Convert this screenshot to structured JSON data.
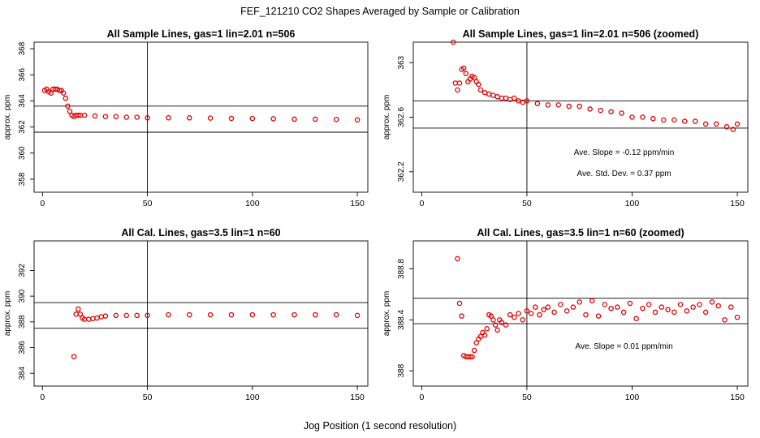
{
  "figure": {
    "title": "FEF_121210  CO2 Shapes Averaged by Sample or Calibration",
    "xlabel": "Jog Position (1 second resolution)",
    "point_color": "#e00000",
    "line_color": "#000000"
  },
  "chart_data": [
    {
      "type": "scatter",
      "title": "All Sample Lines, gas=1 lin=2.01 n=506",
      "xlabel": "",
      "ylabel": "approx. ppm",
      "xlim": [
        -4,
        155
      ],
      "ylim": [
        357,
        368.5
      ],
      "xticks": [
        0,
        50,
        100,
        150
      ],
      "yticks": [
        358,
        360,
        362,
        364,
        366,
        368
      ],
      "vline": 50,
      "hlines": [
        363.6,
        361.6
      ],
      "annotations": [],
      "points": {
        "x": [
          1,
          2,
          3,
          4,
          5,
          6,
          7,
          8,
          9,
          10,
          11,
          12,
          13,
          14,
          15,
          16,
          17,
          18,
          20,
          25,
          30,
          35,
          40,
          45,
          50,
          60,
          70,
          80,
          90,
          100,
          110,
          120,
          130,
          140,
          150
        ],
        "y": [
          364.8,
          364.9,
          364.7,
          364.6,
          364.9,
          364.9,
          364.9,
          364.8,
          364.8,
          364.6,
          364.2,
          363.6,
          363.2,
          362.9,
          362.8,
          362.9,
          362.9,
          362.9,
          362.9,
          362.85,
          362.8,
          362.8,
          362.75,
          362.75,
          362.7,
          362.7,
          362.7,
          362.68,
          362.66,
          362.65,
          362.63,
          362.6,
          362.6,
          362.58,
          362.55
        ]
      }
    },
    {
      "type": "scatter",
      "title": "All Sample Lines, gas=1 lin=2.01 n=506 (zoomed)",
      "xlabel": "",
      "ylabel": "approx. ppm",
      "xlim": [
        -4,
        155
      ],
      "ylim": [
        362.05,
        363.15
      ],
      "xticks": [
        0,
        50,
        100,
        150
      ],
      "yticks": [
        362.2,
        362.6,
        363.0
      ],
      "vline": 50,
      "hlines": [
        362.72,
        362.52
      ],
      "annotations": [
        "Ave. Slope =  -0.12  ppm/min",
        "Ave. Std. Dev. =  0.37  ppm"
      ],
      "points": {
        "x": [
          15,
          16,
          17,
          18,
          19,
          20,
          21,
          22,
          23,
          24,
          25,
          26,
          27,
          28,
          30,
          32,
          34,
          36,
          38,
          40,
          42,
          44,
          46,
          48,
          50,
          55,
          60,
          65,
          70,
          75,
          80,
          85,
          90,
          95,
          100,
          105,
          110,
          115,
          120,
          125,
          130,
          135,
          140,
          145,
          148,
          150
        ],
        "y": [
          363.15,
          362.85,
          362.8,
          362.85,
          362.95,
          362.96,
          362.92,
          362.86,
          362.88,
          362.9,
          362.89,
          362.86,
          362.84,
          362.8,
          362.78,
          362.77,
          362.76,
          362.75,
          362.74,
          362.74,
          362.73,
          362.74,
          362.72,
          362.71,
          362.72,
          362.7,
          362.69,
          362.69,
          362.68,
          362.68,
          362.66,
          362.65,
          362.64,
          362.63,
          362.6,
          362.6,
          362.59,
          362.58,
          362.58,
          362.57,
          362.57,
          362.55,
          362.55,
          362.53,
          362.51,
          362.55
        ]
      }
    },
    {
      "type": "scatter",
      "title": "All Cal. Lines, gas=3.5 lin=1 n=60",
      "xlabel": "",
      "ylabel": "approx. ppm",
      "xlim": [
        -4,
        155
      ],
      "ylim": [
        383,
        394.3
      ],
      "xticks": [
        0,
        50,
        100,
        150
      ],
      "yticks": [
        384,
        386,
        388,
        390,
        392
      ],
      "vline": 50,
      "hlines": [
        389.5,
        387.5
      ],
      "annotations": [],
      "points": {
        "x": [
          15,
          16,
          17,
          18,
          19,
          20,
          22,
          24,
          26,
          28,
          30,
          35,
          40,
          45,
          50,
          60,
          70,
          80,
          90,
          100,
          110,
          120,
          130,
          140,
          150
        ],
        "y": [
          385.3,
          388.6,
          389.0,
          388.6,
          388.3,
          388.2,
          388.2,
          388.25,
          388.3,
          388.4,
          388.45,
          388.5,
          388.5,
          388.5,
          388.5,
          388.55,
          388.55,
          388.55,
          388.55,
          388.55,
          388.55,
          388.55,
          388.55,
          388.55,
          388.5
        ]
      }
    },
    {
      "type": "scatter",
      "title": "All Cal. Lines, gas=3.5 lin=1 n=60 (zoomed)",
      "xlabel": "",
      "ylabel": "approx. ppm",
      "xlim": [
        -4,
        155
      ],
      "ylim": [
        387.88,
        389.02
      ],
      "xticks": [
        0,
        50,
        100,
        150
      ],
      "yticks": [
        388.0,
        388.4,
        388.8
      ],
      "vline": 50,
      "hlines": [
        388.57,
        388.37
      ],
      "annotations": [
        "Ave. Slope =  0.01  ppm/min"
      ],
      "points": {
        "x": [
          17,
          18,
          19,
          20,
          21,
          22,
          23,
          24,
          25,
          26,
          27,
          28,
          29,
          30,
          31,
          32,
          33,
          34,
          35,
          36,
          37,
          38,
          40,
          42,
          44,
          46,
          48,
          50,
          52,
          54,
          56,
          58,
          60,
          63,
          66,
          69,
          72,
          75,
          78,
          81,
          84,
          87,
          90,
          93,
          96,
          99,
          102,
          105,
          108,
          111,
          114,
          117,
          120,
          123,
          126,
          129,
          132,
          135,
          138,
          141,
          144,
          147,
          150
        ],
        "y": [
          388.88,
          388.53,
          388.43,
          388.12,
          388.11,
          388.11,
          388.11,
          388.11,
          388.16,
          388.22,
          388.25,
          388.27,
          388.3,
          388.28,
          388.33,
          388.44,
          388.43,
          388.4,
          388.36,
          388.32,
          388.4,
          388.38,
          388.36,
          388.44,
          388.42,
          388.45,
          388.4,
          388.47,
          388.45,
          388.5,
          388.44,
          388.48,
          388.5,
          388.46,
          388.52,
          388.47,
          388.5,
          388.54,
          388.44,
          388.55,
          388.43,
          388.52,
          388.49,
          388.5,
          388.46,
          388.53,
          388.41,
          388.49,
          388.52,
          388.46,
          388.5,
          388.48,
          388.46,
          388.52,
          388.47,
          388.5,
          388.52,
          388.46,
          388.54,
          388.51,
          388.4,
          388.5,
          388.42
        ]
      }
    }
  ]
}
